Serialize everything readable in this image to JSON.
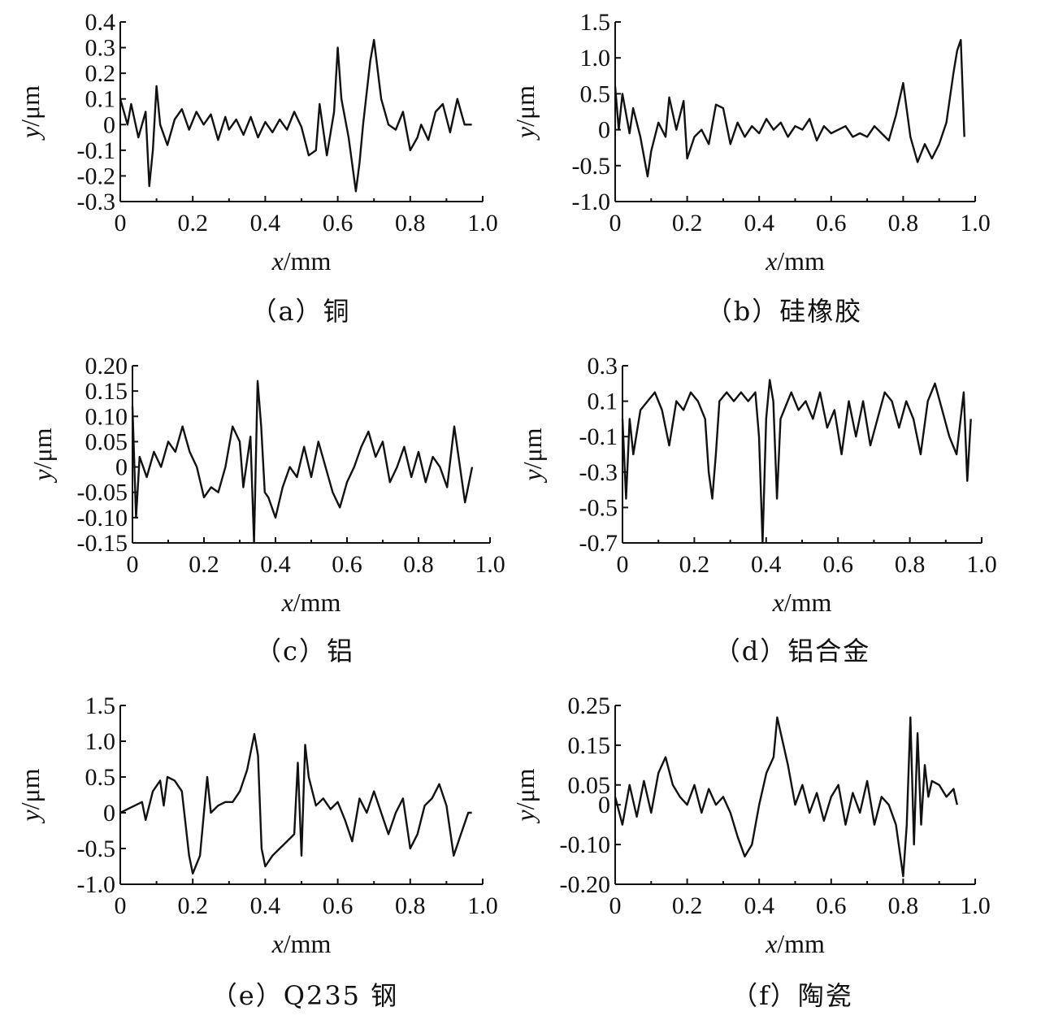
{
  "chart_data": [
    {
      "type": "line",
      "caption": "（a）铜",
      "xlabel_var": "x",
      "xlabel_unit": "/mm",
      "ylabel_var": "y",
      "ylabel_unit": "/μm",
      "xlim": [
        0,
        1.0
      ],
      "ylim": [
        -0.3,
        0.4
      ],
      "xticks": [
        "0",
        "0.2",
        "0.4",
        "0.6",
        "0.8",
        "1.0"
      ],
      "xtick_values": [
        0,
        0.2,
        0.4,
        0.6,
        0.8,
        1.0
      ],
      "yticks": [
        "0.4",
        "0.3",
        "0.2",
        "0.1",
        "0",
        "-0.1",
        "-0.2",
        "-0.3"
      ],
      "ytick_values": [
        0.4,
        0.3,
        0.2,
        0.1,
        0,
        -0.1,
        -0.2,
        -0.3
      ],
      "x": [
        0,
        0.02,
        0.03,
        0.05,
        0.07,
        0.08,
        0.09,
        0.1,
        0.11,
        0.13,
        0.15,
        0.17,
        0.19,
        0.21,
        0.23,
        0.25,
        0.27,
        0.29,
        0.3,
        0.32,
        0.34,
        0.36,
        0.38,
        0.4,
        0.42,
        0.44,
        0.46,
        0.48,
        0.5,
        0.52,
        0.54,
        0.55,
        0.57,
        0.59,
        0.6,
        0.61,
        0.63,
        0.65,
        0.66,
        0.67,
        0.69,
        0.7,
        0.72,
        0.74,
        0.76,
        0.78,
        0.8,
        0.82,
        0.83,
        0.85,
        0.87,
        0.89,
        0.91,
        0.93,
        0.95,
        0.97
      ],
      "y": [
        0.1,
        0.0,
        0.08,
        -0.05,
        0.05,
        -0.24,
        -0.1,
        0.15,
        0.0,
        -0.08,
        0.02,
        0.06,
        -0.02,
        0.05,
        0.0,
        0.04,
        -0.06,
        0.03,
        -0.02,
        0.02,
        -0.04,
        0.03,
        -0.05,
        0.01,
        -0.03,
        0.02,
        -0.02,
        0.05,
        -0.01,
        -0.12,
        -0.1,
        0.08,
        -0.12,
        0.05,
        0.3,
        0.1,
        -0.05,
        -0.26,
        -0.15,
        0.0,
        0.25,
        0.33,
        0.1,
        0.0,
        -0.02,
        0.05,
        -0.1,
        -0.05,
        0.0,
        -0.06,
        0.05,
        0.08,
        -0.03,
        0.1,
        0.0,
        0.0
      ]
    },
    {
      "type": "line",
      "caption": "（b）硅橡胶",
      "xlabel_var": "x",
      "xlabel_unit": "/mm",
      "ylabel_var": "y",
      "ylabel_unit": "/μm",
      "xlim": [
        0,
        1.0
      ],
      "ylim": [
        -1.0,
        1.5
      ],
      "xticks": [
        "0",
        "0.2",
        "0.4",
        "0.6",
        "0.8",
        "1.0"
      ],
      "xtick_values": [
        0,
        0.2,
        0.4,
        0.6,
        0.8,
        1.0
      ],
      "yticks": [
        "1.5",
        "1.0",
        "0.5",
        "0",
        "-0.5",
        "-1.0"
      ],
      "ytick_values": [
        1.5,
        1.0,
        0.5,
        0,
        -0.5,
        -1.0
      ],
      "x": [
        0,
        0.01,
        0.02,
        0.04,
        0.05,
        0.07,
        0.09,
        0.1,
        0.12,
        0.14,
        0.15,
        0.17,
        0.19,
        0.2,
        0.22,
        0.24,
        0.26,
        0.28,
        0.3,
        0.32,
        0.34,
        0.36,
        0.38,
        0.4,
        0.42,
        0.44,
        0.46,
        0.48,
        0.5,
        0.52,
        0.54,
        0.56,
        0.58,
        0.6,
        0.62,
        0.64,
        0.66,
        0.68,
        0.7,
        0.72,
        0.74,
        0.76,
        0.78,
        0.8,
        0.82,
        0.84,
        0.86,
        0.88,
        0.9,
        0.92,
        0.94,
        0.95,
        0.96,
        0.97
      ],
      "y": [
        0.6,
        0.0,
        0.5,
        -0.05,
        0.3,
        -0.1,
        -0.65,
        -0.3,
        0.1,
        -0.1,
        0.45,
        0.0,
        0.4,
        -0.4,
        -0.1,
        0.0,
        -0.2,
        0.35,
        0.3,
        -0.2,
        0.1,
        -0.1,
        0.05,
        -0.05,
        0.15,
        0.0,
        0.1,
        -0.1,
        0.05,
        0.0,
        0.15,
        -0.15,
        0.05,
        -0.05,
        0.0,
        0.05,
        -0.1,
        -0.05,
        -0.1,
        0.05,
        -0.05,
        -0.15,
        0.2,
        0.65,
        -0.1,
        -0.45,
        -0.2,
        -0.4,
        -0.2,
        0.1,
        0.8,
        1.1,
        1.25,
        -0.1
      ]
    },
    {
      "type": "line",
      "caption": "（c）铝",
      "xlabel_var": "x",
      "xlabel_unit": "/mm",
      "ylabel_var": "y",
      "ylabel_unit": "/μm",
      "xlim": [
        0,
        1.0
      ],
      "ylim": [
        -0.15,
        0.2
      ],
      "xticks": [
        "0",
        "0.2",
        "0.4",
        "0.6",
        "0.8",
        "1.0"
      ],
      "xtick_values": [
        0,
        0.2,
        0.4,
        0.6,
        0.8,
        1.0
      ],
      "yticks": [
        "0.20",
        "0.15",
        "0.10",
        "0.05",
        "0",
        "-0.05",
        "-0.10",
        "-0.15"
      ],
      "ytick_values": [
        0.2,
        0.15,
        0.1,
        0.05,
        0,
        -0.05,
        -0.1,
        -0.15
      ],
      "x": [
        0,
        0.01,
        0.02,
        0.04,
        0.06,
        0.08,
        0.1,
        0.12,
        0.14,
        0.16,
        0.18,
        0.2,
        0.22,
        0.24,
        0.26,
        0.28,
        0.3,
        0.31,
        0.33,
        0.34,
        0.35,
        0.36,
        0.37,
        0.38,
        0.4,
        0.42,
        0.44,
        0.46,
        0.48,
        0.5,
        0.52,
        0.54,
        0.56,
        0.58,
        0.6,
        0.62,
        0.64,
        0.66,
        0.68,
        0.7,
        0.72,
        0.74,
        0.76,
        0.78,
        0.8,
        0.82,
        0.84,
        0.86,
        0.88,
        0.9,
        0.92,
        0.93,
        0.95
      ],
      "y": [
        0.12,
        -0.1,
        0.02,
        -0.02,
        0.03,
        0.0,
        0.05,
        0.03,
        0.08,
        0.03,
        0.0,
        -0.06,
        -0.04,
        -0.05,
        0.0,
        0.08,
        0.05,
        -0.04,
        0.06,
        -0.15,
        0.17,
        0.08,
        -0.05,
        -0.06,
        -0.1,
        -0.04,
        0.0,
        -0.02,
        0.04,
        -0.02,
        0.05,
        0.0,
        -0.05,
        -0.08,
        -0.03,
        0.0,
        0.04,
        0.07,
        0.02,
        0.05,
        -0.03,
        0.0,
        0.04,
        -0.02,
        0.03,
        -0.03,
        0.02,
        0.0,
        -0.04,
        0.08,
        -0.02,
        -0.07,
        0.0
      ]
    },
    {
      "type": "line",
      "caption": "（d）铝合金",
      "xlabel_var": "x",
      "xlabel_unit": "/mm",
      "ylabel_var": "y",
      "ylabel_unit": "/μm",
      "xlim": [
        0,
        1.0
      ],
      "ylim": [
        -0.7,
        0.3
      ],
      "xticks": [
        "0",
        "0.2",
        "0.4",
        "0.6",
        "0.8",
        "1.0"
      ],
      "xtick_values": [
        0,
        0.2,
        0.4,
        0.6,
        0.8,
        1.0
      ],
      "yticks": [
        "0.3",
        "0.1",
        "-0.1",
        "-0.3",
        "-0.5",
        "-0.7"
      ],
      "ytick_values": [
        0.3,
        0.1,
        -0.1,
        -0.3,
        -0.5,
        -0.7
      ],
      "x": [
        0,
        0.01,
        0.02,
        0.03,
        0.05,
        0.07,
        0.09,
        0.11,
        0.13,
        0.15,
        0.17,
        0.19,
        0.21,
        0.23,
        0.24,
        0.25,
        0.26,
        0.27,
        0.29,
        0.31,
        0.33,
        0.35,
        0.37,
        0.38,
        0.39,
        0.4,
        0.41,
        0.42,
        0.43,
        0.44,
        0.45,
        0.47,
        0.49,
        0.51,
        0.53,
        0.55,
        0.57,
        0.59,
        0.61,
        0.63,
        0.65,
        0.67,
        0.69,
        0.71,
        0.73,
        0.75,
        0.77,
        0.79,
        0.81,
        0.83,
        0.85,
        0.87,
        0.89,
        0.91,
        0.93,
        0.95,
        0.96,
        0.97
      ],
      "y": [
        0.0,
        -0.45,
        0.0,
        -0.2,
        0.05,
        0.1,
        0.15,
        0.05,
        -0.15,
        0.1,
        0.05,
        0.15,
        0.1,
        0.0,
        -0.3,
        -0.45,
        -0.2,
        0.1,
        0.15,
        0.1,
        0.15,
        0.1,
        0.15,
        -0.1,
        -0.7,
        0.0,
        0.22,
        0.1,
        -0.45,
        0.0,
        0.05,
        0.15,
        0.05,
        0.1,
        0.0,
        0.15,
        -0.05,
        0.05,
        -0.2,
        0.1,
        -0.1,
        0.1,
        -0.15,
        0.0,
        0.15,
        0.1,
        -0.05,
        0.1,
        0.0,
        -0.2,
        0.1,
        0.2,
        0.05,
        -0.1,
        -0.2,
        0.15,
        -0.35,
        0.0
      ]
    },
    {
      "type": "line",
      "caption": "（e）Q235 钢",
      "xlabel_var": "x",
      "xlabel_unit": "/mm",
      "ylabel_var": "y",
      "ylabel_unit": "/μm",
      "xlim": [
        0,
        1.0
      ],
      "ylim": [
        -1.0,
        1.5
      ],
      "xticks": [
        "0",
        "0.2",
        "0.4",
        "0.6",
        "0.8",
        "1.0"
      ],
      "xtick_values": [
        0,
        0.2,
        0.4,
        0.6,
        0.8,
        1.0
      ],
      "yticks": [
        "1.5",
        "1.0",
        "0.5",
        "0",
        "-0.5",
        "-1.0"
      ],
      "ytick_values": [
        1.5,
        1.0,
        0.5,
        0,
        -0.5,
        -1.0
      ],
      "x": [
        0,
        0.02,
        0.04,
        0.06,
        0.07,
        0.09,
        0.11,
        0.12,
        0.13,
        0.15,
        0.17,
        0.19,
        0.2,
        0.22,
        0.24,
        0.25,
        0.27,
        0.29,
        0.31,
        0.33,
        0.35,
        0.37,
        0.38,
        0.39,
        0.4,
        0.42,
        0.44,
        0.46,
        0.48,
        0.49,
        0.5,
        0.51,
        0.52,
        0.54,
        0.56,
        0.58,
        0.6,
        0.62,
        0.64,
        0.66,
        0.68,
        0.7,
        0.72,
        0.74,
        0.76,
        0.78,
        0.8,
        0.82,
        0.84,
        0.86,
        0.88,
        0.9,
        0.92,
        0.94,
        0.96,
        0.97
      ],
      "y": [
        0.0,
        0.05,
        0.1,
        0.15,
        -0.1,
        0.3,
        0.45,
        0.1,
        0.5,
        0.45,
        0.3,
        -0.6,
        -0.85,
        -0.6,
        0.5,
        0.0,
        0.1,
        0.15,
        0.15,
        0.3,
        0.6,
        1.1,
        0.8,
        -0.5,
        -0.75,
        -0.6,
        -0.5,
        -0.4,
        -0.3,
        0.7,
        -0.6,
        0.95,
        0.5,
        0.1,
        0.2,
        0.05,
        0.15,
        -0.1,
        -0.4,
        0.2,
        0.0,
        0.3,
        0.0,
        -0.3,
        0.0,
        0.2,
        -0.5,
        -0.3,
        0.1,
        0.2,
        0.4,
        0.1,
        -0.6,
        -0.3,
        0.0,
        0.0
      ]
    },
    {
      "type": "line",
      "caption": "（f）陶瓷",
      "xlabel_var": "x",
      "xlabel_unit": "/mm",
      "ylabel_var": "y",
      "ylabel_unit": "/μm",
      "xlim": [
        0,
        1.0
      ],
      "ylim": [
        -0.2,
        0.25
      ],
      "xticks": [
        "0",
        "0.2",
        "0.4",
        "0.6",
        "0.8",
        "1.0"
      ],
      "xtick_values": [
        0,
        0.2,
        0.4,
        0.6,
        0.8,
        1.0
      ],
      "yticks": [
        "0.25",
        "0.15",
        "0.05",
        "0",
        "-0.10",
        "-0.20"
      ],
      "ytick_values": [
        0.25,
        0.15,
        0.05,
        0,
        -0.1,
        -0.2
      ],
      "x": [
        0,
        0.02,
        0.04,
        0.06,
        0.08,
        0.1,
        0.12,
        0.14,
        0.16,
        0.18,
        0.2,
        0.22,
        0.24,
        0.26,
        0.28,
        0.3,
        0.32,
        0.34,
        0.36,
        0.38,
        0.4,
        0.42,
        0.44,
        0.45,
        0.46,
        0.48,
        0.5,
        0.52,
        0.54,
        0.56,
        0.58,
        0.6,
        0.62,
        0.64,
        0.66,
        0.68,
        0.7,
        0.72,
        0.74,
        0.76,
        0.78,
        0.8,
        0.81,
        0.82,
        0.83,
        0.84,
        0.85,
        0.86,
        0.87,
        0.88,
        0.9,
        0.92,
        0.94,
        0.95
      ],
      "y": [
        0.02,
        -0.05,
        0.05,
        -0.03,
        0.06,
        -0.02,
        0.08,
        0.12,
        0.05,
        0.02,
        0.0,
        0.05,
        -0.02,
        0.04,
        0.0,
        0.02,
        -0.02,
        -0.08,
        -0.13,
        -0.1,
        0.0,
        0.08,
        0.12,
        0.22,
        0.18,
        0.1,
        0.0,
        0.05,
        -0.02,
        0.03,
        -0.04,
        0.02,
        0.05,
        -0.05,
        0.03,
        -0.02,
        0.06,
        -0.05,
        0.02,
        0.0,
        -0.05,
        -0.18,
        -0.05,
        0.22,
        -0.1,
        0.18,
        -0.05,
        0.1,
        0.02,
        0.06,
        0.05,
        0.02,
        0.04,
        0.0
      ]
    }
  ]
}
